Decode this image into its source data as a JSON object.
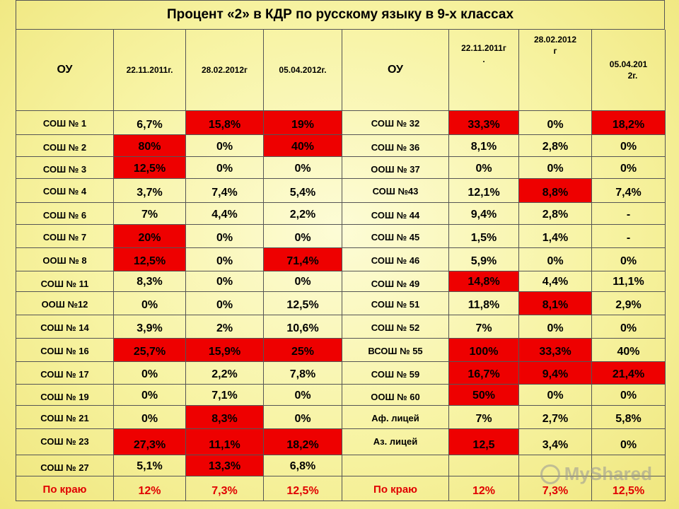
{
  "title": "Процент «2» в КДР по русскому языку в 9-х классах",
  "headers": {
    "ou_left": "ОУ",
    "date1_left": "22.11.2011г.",
    "date2_left": "28.02.2012г",
    "date3_left": "05.04.2012г.",
    "ou_right": "ОУ",
    "date1_right_a": "22.11.2011г",
    "date1_right_b": ".",
    "date2_right_a": "28.02.2012",
    "date2_right_b": "г",
    "date3_right_a": "05.04.201",
    "date3_right_b": "2г."
  },
  "rows": [
    {
      "left": {
        "name": "СОШ № 1",
        "v": [
          "6,7%",
          "15,8%",
          "19%"
        ],
        "red": [
          false,
          true,
          true
        ]
      },
      "right": {
        "name": "СОШ № 32",
        "v": [
          "33,3%",
          "0%",
          "18,2%"
        ],
        "red": [
          true,
          false,
          true
        ]
      }
    },
    {
      "left": {
        "name": "СОШ № 2",
        "v": [
          "80%",
          "0%",
          "40%"
        ],
        "red": [
          true,
          false,
          true
        ]
      },
      "right": {
        "name": "СОШ № 36",
        "v": [
          "8,1%",
          "2,8%",
          "0%"
        ],
        "red": [
          false,
          false,
          false
        ]
      }
    },
    {
      "left": {
        "name": "СОШ № 3",
        "v": [
          "12,5%",
          "0%",
          "0%"
        ],
        "red": [
          true,
          false,
          false
        ]
      },
      "right": {
        "name": "ООШ № 37",
        "v": [
          "0%",
          "0%",
          "0%"
        ],
        "red": [
          false,
          false,
          false
        ]
      }
    },
    {
      "left": {
        "name": "СОШ № 4",
        "v": [
          "3,7%",
          "7,4%",
          "5,4%"
        ],
        "red": [
          false,
          false,
          false
        ]
      },
      "right": {
        "name": "СОШ №43",
        "v": [
          "12,1%",
          "8,8%",
          "7,4%"
        ],
        "red": [
          false,
          true,
          false
        ]
      }
    },
    {
      "left": {
        "name": "СОШ № 6",
        "v": [
          "7%",
          "4,4%",
          "2,2%"
        ],
        "red": [
          false,
          false,
          false
        ]
      },
      "right": {
        "name": "СОШ № 44",
        "v": [
          "9,4%",
          "2,8%",
          "-"
        ],
        "red": [
          false,
          false,
          false
        ]
      }
    },
    {
      "left": {
        "name": "СОШ № 7",
        "v": [
          "20%",
          "0%",
          "0%"
        ],
        "red": [
          true,
          false,
          false
        ]
      },
      "right": {
        "name": "СОШ № 45",
        "v": [
          "1,5%",
          "1,4%",
          "-"
        ],
        "red": [
          false,
          false,
          false
        ]
      }
    },
    {
      "left": {
        "name": "ООШ № 8",
        "v": [
          "12,5%",
          "0%",
          "71,4%"
        ],
        "red": [
          true,
          false,
          true
        ]
      },
      "right": {
        "name": "СОШ № 46",
        "v": [
          "5,9%",
          "0%",
          "0%"
        ],
        "red": [
          false,
          false,
          false
        ]
      }
    },
    {
      "left": {
        "name": "СОШ № 11",
        "v": [
          "8,3%",
          "0%",
          "0%"
        ],
        "red": [
          false,
          false,
          false
        ]
      },
      "right": {
        "name": "СОШ № 49",
        "v": [
          "14,8%",
          "4,4%",
          "11,1%"
        ],
        "red": [
          true,
          false,
          false
        ]
      }
    },
    {
      "left": {
        "name": "ООШ №12",
        "v": [
          "0%",
          "0%",
          "12,5%"
        ],
        "red": [
          false,
          false,
          false
        ]
      },
      "right": {
        "name": "СОШ № 51",
        "v": [
          "11,8%",
          "8,1%",
          "2,9%"
        ],
        "red": [
          false,
          true,
          false
        ]
      }
    },
    {
      "left": {
        "name": "СОШ № 14",
        "v": [
          "3,9%",
          "2%",
          "10,6%"
        ],
        "red": [
          false,
          false,
          false
        ]
      },
      "right": {
        "name": "СОШ № 52",
        "v": [
          "7%",
          "0%",
          "0%"
        ],
        "red": [
          false,
          false,
          false
        ]
      }
    },
    {
      "left": {
        "name": "СОШ № 16",
        "v": [
          "25,7%",
          "15,9%",
          "25%"
        ],
        "red": [
          true,
          true,
          true
        ]
      },
      "right": {
        "name": "ВСОШ № 55",
        "v": [
          "100%",
          "33,3%",
          "40%"
        ],
        "red": [
          true,
          true,
          false
        ]
      }
    },
    {
      "left": {
        "name": "СОШ № 17",
        "v": [
          "0%",
          "2,2%",
          "7,8%"
        ],
        "red": [
          false,
          false,
          false
        ]
      },
      "right": {
        "name": "СОШ № 59",
        "v": [
          "16,7%",
          "9,4%",
          "21,4%"
        ],
        "red": [
          true,
          true,
          true
        ]
      }
    },
    {
      "left": {
        "name": "СОШ № 19",
        "v": [
          "0%",
          "7,1%",
          "0%"
        ],
        "red": [
          false,
          false,
          false
        ]
      },
      "right": {
        "name": "ООШ № 60",
        "v": [
          "50%",
          "0%",
          "0%"
        ],
        "red": [
          true,
          false,
          false
        ]
      }
    },
    {
      "left": {
        "name": "СОШ № 21",
        "v": [
          "0%",
          "8,3%",
          "0%"
        ],
        "red": [
          false,
          true,
          false
        ]
      },
      "right": {
        "name": "Аф. лицей",
        "v": [
          "7%",
          "2,7%",
          "5,8%"
        ],
        "red": [
          false,
          false,
          false
        ]
      }
    },
    {
      "left": {
        "name": "СОШ № 23",
        "v": [
          "27,3%",
          "11,1%",
          "18,2%"
        ],
        "red": [
          true,
          true,
          true
        ]
      },
      "right": {
        "name": "Аз. лицей",
        "v": [
          "12,5",
          "3,4%",
          "0%"
        ],
        "red": [
          true,
          false,
          false
        ]
      }
    },
    {
      "left": {
        "name": "СОШ № 27",
        "v": [
          "5,1%",
          "13,3%",
          "6,8%"
        ],
        "red": [
          false,
          true,
          false
        ]
      },
      "right": {
        "name": "",
        "v": [
          "",
          "",
          ""
        ],
        "red": [
          false,
          false,
          false
        ]
      }
    }
  ],
  "totals": {
    "left": {
      "name": "По краю",
      "v": [
        "12%",
        "7,3%",
        "12,5%"
      ]
    },
    "right": {
      "name": "По краю",
      "v": [
        "12%",
        "7,3%",
        "12,5%"
      ]
    }
  },
  "colors": {
    "highlight": "#ee0000",
    "total_text": "#e00000"
  },
  "watermark": "MyShared"
}
